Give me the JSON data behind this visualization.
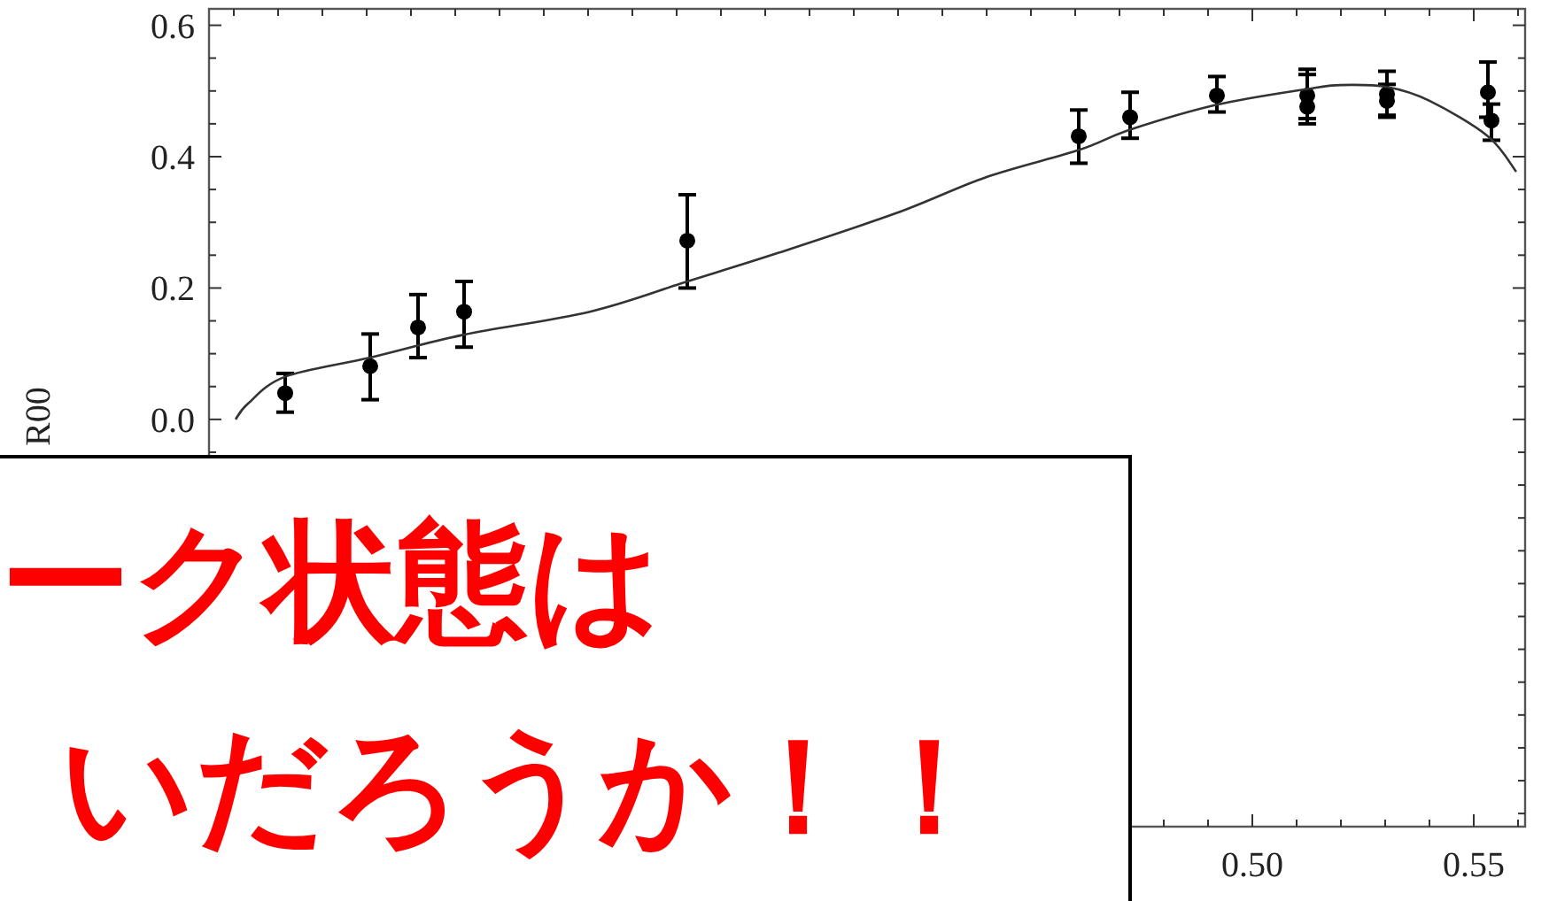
{
  "chart_data": {
    "type": "scatter",
    "ylabel": "R00",
    "xlim": [
      0.2644,
      0.5616
    ],
    "ylim": [
      -0.62,
      0.625
    ],
    "xticks": [
      {
        "value": 0.27,
        "label": null
      },
      {
        "value": 0.28,
        "label": null
      },
      {
        "value": 0.29,
        "label": null
      },
      {
        "value": 0.3,
        "label": null
      },
      {
        "value": 0.31,
        "label": null
      },
      {
        "value": 0.32,
        "label": null
      },
      {
        "value": 0.33,
        "label": null
      },
      {
        "value": 0.34,
        "label": null
      },
      {
        "value": 0.35,
        "label": null
      },
      {
        "value": 0.36,
        "label": null
      },
      {
        "value": 0.37,
        "label": null
      },
      {
        "value": 0.38,
        "label": null
      },
      {
        "value": 0.39,
        "label": null
      },
      {
        "value": 0.4,
        "label": null
      },
      {
        "value": 0.41,
        "label": null
      },
      {
        "value": 0.42,
        "label": null
      },
      {
        "value": 0.43,
        "label": null
      },
      {
        "value": 0.44,
        "label": null
      },
      {
        "value": 0.45,
        "label": null
      },
      {
        "value": 0.46,
        "label": null
      },
      {
        "value": 0.47,
        "label": null
      },
      {
        "value": 0.48,
        "label": null
      },
      {
        "value": 0.49,
        "label": null
      },
      {
        "value": 0.5,
        "label": "0.50"
      },
      {
        "value": 0.51,
        "label": null
      },
      {
        "value": 0.52,
        "label": null
      },
      {
        "value": 0.53,
        "label": null
      },
      {
        "value": 0.54,
        "label": null
      },
      {
        "value": 0.55,
        "label": "0.55"
      },
      {
        "value": 0.56,
        "label": null
      }
    ],
    "yticks": [
      {
        "value": -0.6,
        "label": null
      },
      {
        "value": -0.55,
        "label": null
      },
      {
        "value": -0.5,
        "label": null
      },
      {
        "value": -0.45,
        "label": null
      },
      {
        "value": -0.4,
        "label": null
      },
      {
        "value": -0.35,
        "label": null
      },
      {
        "value": -0.3,
        "label": null
      },
      {
        "value": -0.25,
        "label": null
      },
      {
        "value": -0.2,
        "label": null
      },
      {
        "value": -0.15,
        "label": null
      },
      {
        "value": -0.1,
        "label": null
      },
      {
        "value": -0.05,
        "label": null
      },
      {
        "value": 0,
        "label": "0.0"
      },
      {
        "value": 0.05,
        "label": null
      },
      {
        "value": 0.1,
        "label": null
      },
      {
        "value": 0.15,
        "label": null
      },
      {
        "value": 0.2,
        "label": "0.2"
      },
      {
        "value": 0.25,
        "label": null
      },
      {
        "value": 0.3,
        "label": null
      },
      {
        "value": 0.35,
        "label": null
      },
      {
        "value": 0.4,
        "label": "0.4"
      },
      {
        "value": 0.45,
        "label": null
      },
      {
        "value": 0.5,
        "label": null
      },
      {
        "value": 0.55,
        "label": null
      },
      {
        "value": 0.6,
        "label": "0.6"
      }
    ],
    "grid": false,
    "series": [
      {
        "marker": "circle",
        "color": "#000000",
        "x": [
          0.2816,
          0.3008,
          0.3116,
          0.322,
          0.3724,
          0.4608,
          0.4724,
          0.492,
          0.5124,
          0.5124,
          0.5304,
          0.5304,
          0.5532,
          0.554
        ],
        "values": [
          0.04,
          0.081,
          0.14,
          0.164,
          0.272,
          0.431,
          0.46,
          0.493,
          0.493,
          0.476,
          0.495,
          0.485,
          0.498,
          0.455
        ],
        "errors": [
          [
            0.011,
            0.07
          ],
          [
            0.03,
            0.13
          ],
          [
            0.094,
            0.19
          ],
          [
            0.11,
            0.21
          ],
          [
            0.2,
            0.342
          ],
          [
            0.39,
            0.471
          ],
          [
            0.428,
            0.498
          ],
          [
            0.468,
            0.522
          ],
          [
            0.458,
            0.533
          ],
          [
            0.45,
            0.525
          ],
          [
            0.463,
            0.53
          ],
          [
            0.46,
            0.51
          ],
          [
            0.46,
            0.544
          ],
          [
            0.425,
            0.48
          ]
        ]
      },
      {
        "type": "line",
        "color": "#333333",
        "line_style": "solid",
        "x": [
          0.2704,
          0.2732,
          0.2816,
          0.3008,
          0.322,
          0.3504,
          0.3724,
          0.3932,
          0.42,
          0.44,
          0.4608,
          0.4724,
          0.492,
          0.5124,
          0.52,
          0.5304,
          0.54,
          0.5532,
          0.5596
        ],
        "values": [
          0.0,
          0.024,
          0.065,
          0.094,
          0.129,
          0.164,
          0.21,
          0.254,
          0.315,
          0.369,
          0.41,
          0.441,
          0.479,
          0.503,
          0.509,
          0.506,
          0.485,
          0.431,
          0.377
        ]
      }
    ],
    "annotations": [
      "ーク状態は",
      "いだろうか！！"
    ]
  }
}
